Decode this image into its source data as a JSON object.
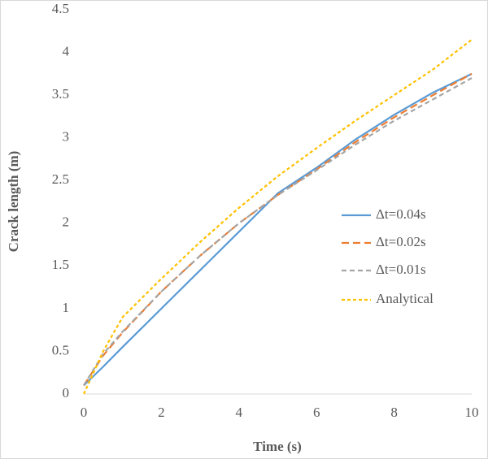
{
  "chart_data": {
    "type": "line",
    "xlabel": "Time (s)",
    "ylabel": "Crack length (m)",
    "x": [
      0,
      0.5,
      1,
      2,
      3,
      4,
      5,
      6,
      7,
      8,
      9,
      10
    ],
    "series": [
      {
        "name": "Δt=0.04s",
        "color": "#5b9bd5",
        "values": [
          0.1,
          0.32,
          0.55,
          1.0,
          1.45,
          1.9,
          2.35,
          2.65,
          2.98,
          3.27,
          3.53,
          3.75
        ]
      },
      {
        "name": "Δt=0.02s",
        "color": "#ed7d31",
        "values": [
          0.1,
          0.45,
          0.72,
          1.2,
          1.62,
          2.0,
          2.33,
          2.63,
          2.95,
          3.24,
          3.5,
          3.75
        ]
      },
      {
        "name": "Δt=0.01s",
        "color": "#a5a5a5",
        "values": [
          0.1,
          0.47,
          0.73,
          1.2,
          1.62,
          2.0,
          2.33,
          2.62,
          2.92,
          3.2,
          3.45,
          3.7
        ]
      },
      {
        "name": "Analytical",
        "color": "#ffc000",
        "values": [
          0,
          0.5,
          0.9,
          1.35,
          1.78,
          2.18,
          2.55,
          2.88,
          3.2,
          3.5,
          3.8,
          4.15
        ]
      }
    ],
    "xlim": [
      0,
      10
    ],
    "xticks": [
      0,
      2,
      4,
      6,
      8,
      10
    ],
    "ylim": [
      0,
      4.5
    ],
    "yticks": [
      0,
      0.5,
      1,
      1.5,
      2,
      2.5,
      3,
      3.5,
      4,
      4.5
    ],
    "grid": false,
    "legend": "right"
  }
}
